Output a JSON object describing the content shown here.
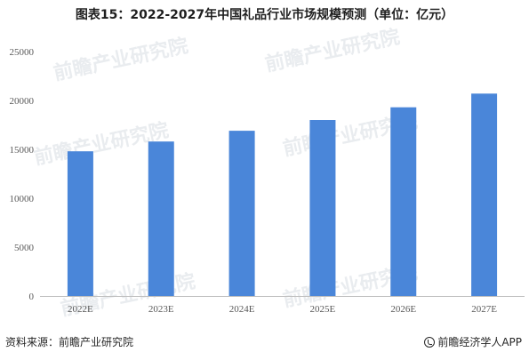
{
  "title": "图表15：2022-2027年中国礼品行业市场规模预测（单位：亿元）",
  "chart_data": {
    "type": "bar",
    "title": "图表15：2022-2027年中国礼品行业市场规模预测（单位：亿元）",
    "categories": [
      "2022E",
      "2023E",
      "2024E",
      "2025E",
      "2026E",
      "2027E"
    ],
    "values": [
      14800,
      15800,
      16900,
      18000,
      19300,
      20700
    ],
    "ylim": [
      0,
      25000
    ],
    "yticks": [
      0,
      5000,
      10000,
      15000,
      20000,
      25000
    ],
    "bar_color": "#4a86d9",
    "grid": false,
    "legend": "none"
  },
  "watermark": "前瞻产业研究院",
  "footer": {
    "source": "资料来源：前瞻产业研究院",
    "brand": "前瞻经济学人APP",
    "brand_icon": "qianzhan-logo-icon"
  }
}
